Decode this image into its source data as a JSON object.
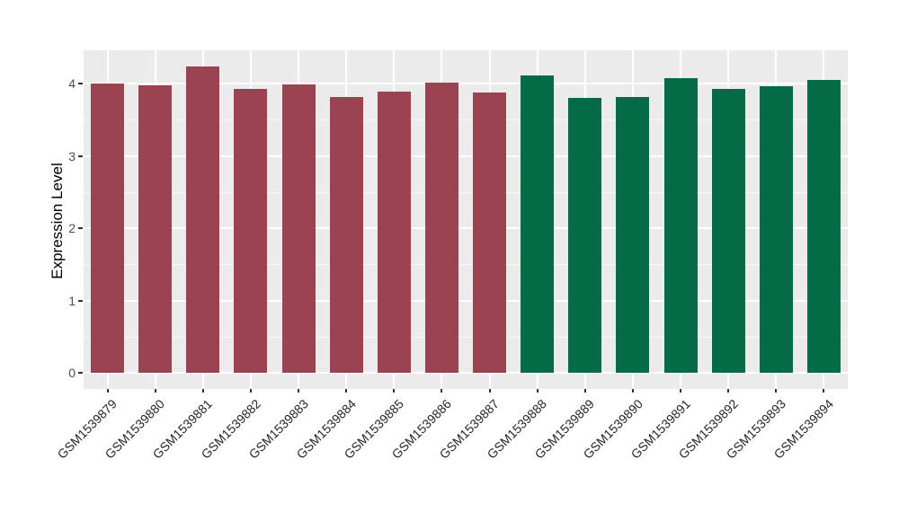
{
  "chart_data": {
    "type": "bar",
    "title": "",
    "xlabel": "",
    "ylabel": "Expression Level",
    "categories": [
      "GSM1539879",
      "GSM1539880",
      "GSM1539881",
      "GSM1539882",
      "GSM1539883",
      "GSM1539884",
      "GSM1539885",
      "GSM1539886",
      "GSM1539887",
      "GSM1539888",
      "GSM1539889",
      "GSM1539890",
      "GSM1539891",
      "GSM1539892",
      "GSM1539893",
      "GSM1539894"
    ],
    "values": [
      4.0,
      3.98,
      4.23,
      3.92,
      3.99,
      3.81,
      3.89,
      4.01,
      3.88,
      4.11,
      3.8,
      3.81,
      4.08,
      3.93,
      3.96,
      4.05
    ],
    "bar_colors": [
      "#9C4351",
      "#9C4351",
      "#9C4351",
      "#9C4351",
      "#9C4351",
      "#9C4351",
      "#9C4351",
      "#9C4351",
      "#9C4351",
      "#046B46",
      "#046B46",
      "#046B46",
      "#046B46",
      "#046B46",
      "#046B46",
      "#046B46"
    ],
    "color_groups": [
      {
        "color": "#9C4351",
        "from": "GSM1539879",
        "to": "GSM1539887",
        "count": 9
      },
      {
        "color": "#046B46",
        "from": "GSM1539888",
        "to": "GSM1539894",
        "count": 7
      }
    ],
    "yticks": [
      0,
      1,
      2,
      3,
      4
    ],
    "ylim": [
      -0.22,
      4.46
    ],
    "x_tick_rotation_deg": 45,
    "grid": "on",
    "legend": "none",
    "panel_background": "#EBEBEB",
    "grid_major_color": "#FFFFFF",
    "grid_minor_color": "#F6F6F6",
    "tick_color": "#333333",
    "y_axis_text_color": "#4D4D4D",
    "x_axis_text_color": "#262626",
    "axis_title_color": "#000000"
  }
}
